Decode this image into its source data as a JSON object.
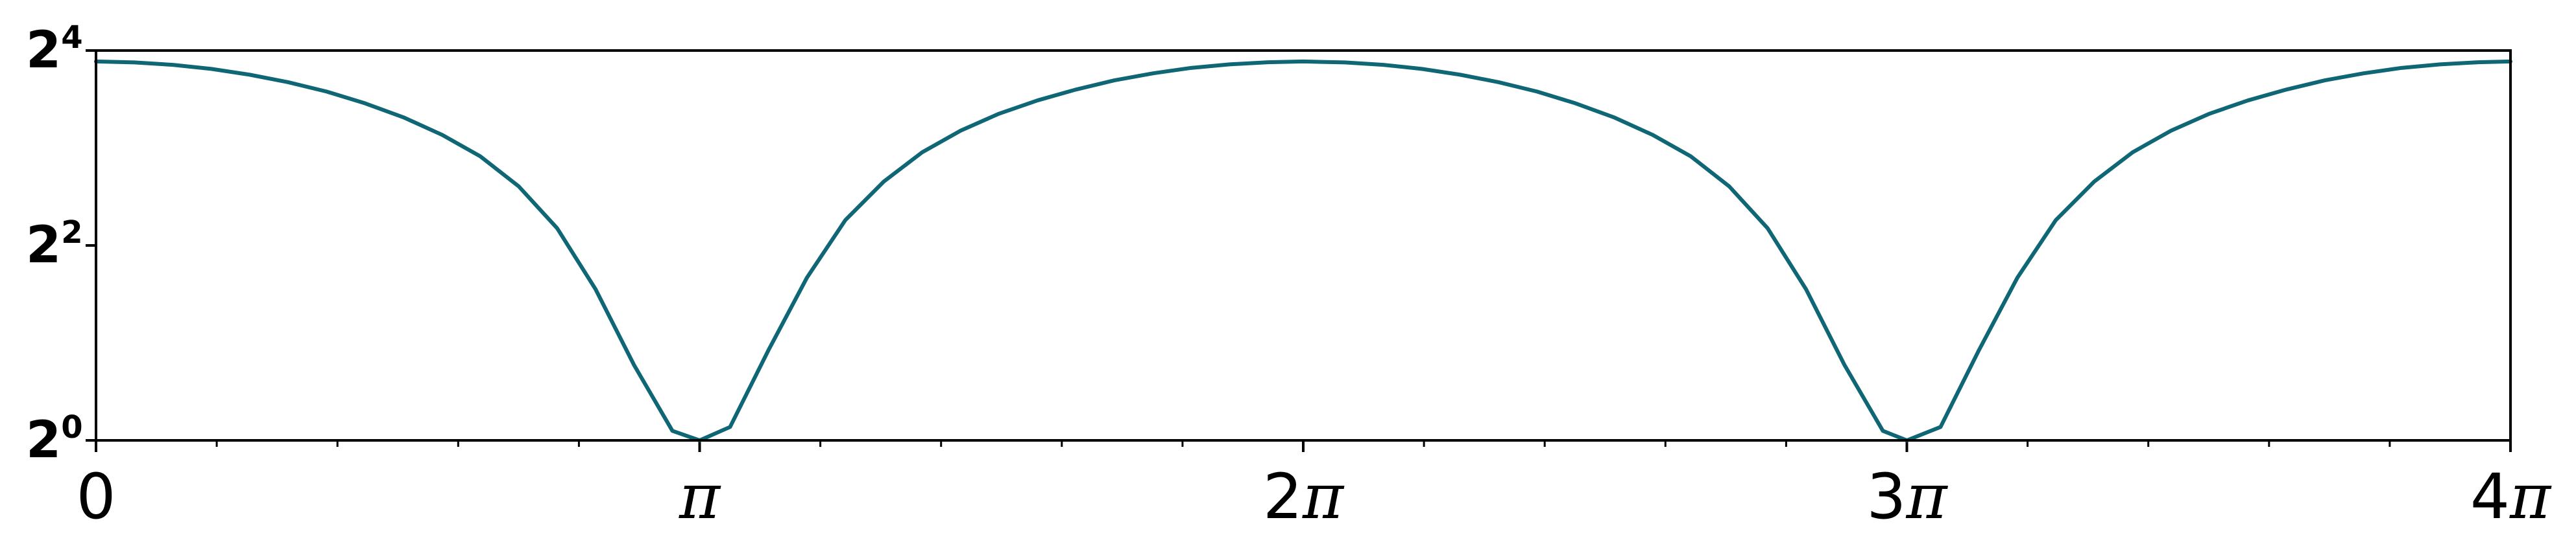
{
  "chart_data": {
    "type": "line",
    "title": "",
    "xlabel": "",
    "ylabel": "",
    "xlim": [
      0,
      12.566370614359172
    ],
    "ylim": [
      1,
      16
    ],
    "yscale": "log2",
    "grid": false,
    "legend": "none",
    "colors": {
      "series": "#0f6675",
      "axes": "#000000"
    },
    "x_ticks": [
      {
        "value": 0,
        "base": "0",
        "pi": ""
      },
      {
        "value": 3.141592653589793,
        "base": "",
        "pi": "π"
      },
      {
        "value": 6.283185307179586,
        "base": "2",
        "pi": "π"
      },
      {
        "value": 9.42477796076938,
        "base": "3",
        "pi": "π"
      },
      {
        "value": 12.566370614359172,
        "base": "4",
        "pi": "π"
      }
    ],
    "x_minor_tick_step": 0.6283185307179586,
    "y_ticks": [
      {
        "value": 1,
        "base": "2",
        "exp": "0"
      },
      {
        "value": 4,
        "base": "2",
        "exp": "2"
      },
      {
        "value": 16,
        "base": "2",
        "exp": "4"
      }
    ],
    "series": [
      {
        "points": [
          [
            0.0,
            14.8
          ],
          [
            0.2,
            14.7
          ],
          [
            0.4,
            14.45
          ],
          [
            0.6,
            14.04
          ],
          [
            0.8,
            13.47
          ],
          [
            1.0,
            12.77
          ],
          [
            1.2,
            11.95
          ],
          [
            1.4,
            10.99
          ],
          [
            1.6,
            9.95
          ],
          [
            1.8,
            8.79
          ],
          [
            2.0,
            7.54
          ],
          [
            2.2,
            6.09
          ],
          [
            2.4,
            4.52
          ],
          [
            2.6,
            2.93
          ],
          [
            2.8,
            1.71
          ],
          [
            3.0,
            1.07
          ],
          [
            3.1416,
            1.0
          ],
          [
            3.3,
            1.1
          ],
          [
            3.5,
            1.9
          ],
          [
            3.7,
            3.18
          ],
          [
            3.9,
            4.79
          ],
          [
            4.1,
            6.3
          ],
          [
            4.3,
            7.76
          ],
          [
            4.5,
            9.05
          ],
          [
            4.7,
            10.21
          ],
          [
            4.9,
            11.22
          ],
          [
            5.1,
            12.12
          ],
          [
            5.3,
            12.94
          ],
          [
            5.5,
            13.6
          ],
          [
            5.7,
            14.14
          ],
          [
            5.9,
            14.5
          ],
          [
            6.1,
            14.72
          ],
          [
            6.2832,
            14.8
          ],
          [
            6.5,
            14.7
          ],
          [
            6.7,
            14.45
          ],
          [
            6.9,
            14.04
          ],
          [
            7.1,
            13.47
          ],
          [
            7.3,
            12.77
          ],
          [
            7.5,
            11.95
          ],
          [
            7.7,
            10.99
          ],
          [
            7.9,
            9.95
          ],
          [
            8.1,
            8.79
          ],
          [
            8.3,
            7.54
          ],
          [
            8.5,
            6.09
          ],
          [
            8.7,
            4.52
          ],
          [
            8.9,
            2.93
          ],
          [
            9.1,
            1.71
          ],
          [
            9.3,
            1.07
          ],
          [
            9.4248,
            1.0
          ],
          [
            9.6,
            1.1
          ],
          [
            9.8,
            1.9
          ],
          [
            10.0,
            3.18
          ],
          [
            10.2,
            4.79
          ],
          [
            10.4,
            6.3
          ],
          [
            10.6,
            7.76
          ],
          [
            10.8,
            9.05
          ],
          [
            11.0,
            10.21
          ],
          [
            11.2,
            11.22
          ],
          [
            11.4,
            12.12
          ],
          [
            11.6,
            12.94
          ],
          [
            11.8,
            13.6
          ],
          [
            12.0,
            14.14
          ],
          [
            12.2,
            14.5
          ],
          [
            12.4,
            14.72
          ],
          [
            12.5664,
            14.8
          ]
        ]
      }
    ]
  }
}
